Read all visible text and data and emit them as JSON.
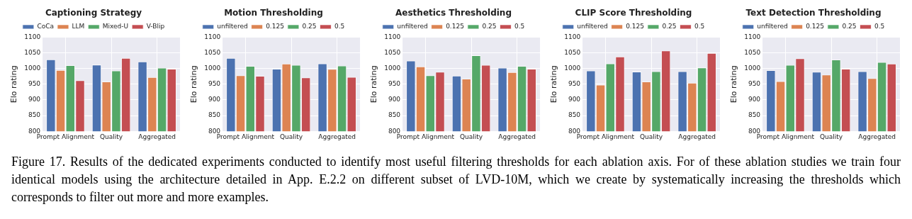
{
  "chart_data": [
    {
      "type": "bar",
      "title": "Captioning Strategy",
      "ylabel": "Elo rating",
      "categories": [
        "Prompt Alignment",
        "Quality",
        "Aggregated"
      ],
      "ylim": [
        800,
        1100
      ],
      "yticks": [
        800,
        850,
        900,
        950,
        1000,
        1050,
        1100
      ],
      "grid": true,
      "legend": "top",
      "annotations": [
        "Figure 17. Results of the dedicated experiments conducted to identify most useful filtering thresholds for each ablation axis. For of these ablation studies we train four identical models using the architecture detailed in App. E.2.2 on different subset of LVD-10M, which we create by systematically increasing the thresholds which corresponds to filter out more and more examples."
      ],
      "series": [
        {
          "name": "CoCa",
          "color": "#4c72b0",
          "values": [
            1029,
            1012,
            1022
          ]
        },
        {
          "name": "LLM",
          "color": "#dd8452",
          "values": [
            995,
            958,
            972
          ]
        },
        {
          "name": "Mixed-U",
          "color": "#55a868",
          "values": [
            1010,
            993,
            1002
          ]
        },
        {
          "name": "V-Blip",
          "color": "#c44e52",
          "values": [
            962,
            1033,
            999
          ]
        }
      ]
    },
    {
      "type": "bar",
      "title": "Motion Thresholding",
      "ylabel": "Elo rating",
      "categories": [
        "Prompt Alignment",
        "Quality",
        "Aggregated"
      ],
      "ylim": [
        800,
        1100
      ],
      "yticks": [
        800,
        850,
        900,
        950,
        1000,
        1050,
        1100
      ],
      "grid": true,
      "legend": "top",
      "series": [
        {
          "name": "unfiltered",
          "color": "#4c72b0",
          "values": [
            1033,
            999,
            1016
          ]
        },
        {
          "name": "0.125",
          "color": "#dd8452",
          "values": [
            978,
            1015,
            998
          ]
        },
        {
          "name": "0.25",
          "color": "#55a868",
          "values": [
            1008,
            1011,
            1009
          ]
        },
        {
          "name": "0.5",
          "color": "#c44e52",
          "values": [
            976,
            971,
            973
          ]
        }
      ]
    },
    {
      "type": "bar",
      "title": "Aesthetics Thresholding",
      "ylabel": "Elo rating",
      "categories": [
        "Prompt Alignment",
        "Quality",
        "Aggregated"
      ],
      "ylim": [
        800,
        1100
      ],
      "yticks": [
        800,
        850,
        900,
        950,
        1000,
        1050,
        1100
      ],
      "grid": true,
      "legend": "top",
      "series": [
        {
          "name": "unfiltered",
          "color": "#4c72b0",
          "values": [
            1025,
            977,
            1002
          ]
        },
        {
          "name": "0.125",
          "color": "#dd8452",
          "values": [
            1006,
            967,
            988
          ]
        },
        {
          "name": "0.25",
          "color": "#55a868",
          "values": [
            978,
            1042,
            1008
          ]
        },
        {
          "name": "0.5",
          "color": "#c44e52",
          "values": [
            989,
            1011,
            999
          ]
        }
      ]
    },
    {
      "type": "bar",
      "title": "CLIP Score Thresholding",
      "ylabel": "Elo rating",
      "categories": [
        "Prompt Alignment",
        "Quality",
        "Aggregated"
      ],
      "ylim": [
        800,
        1100
      ],
      "yticks": [
        800,
        850,
        900,
        950,
        1000,
        1050,
        1100
      ],
      "grid": true,
      "legend": "top",
      "series": [
        {
          "name": "unfiltered",
          "color": "#4c72b0",
          "values": [
            993,
            990,
            991
          ]
        },
        {
          "name": "0.125",
          "color": "#dd8452",
          "values": [
            948,
            958,
            954
          ]
        },
        {
          "name": "0.25",
          "color": "#55a868",
          "values": [
            1016,
            991,
            1003
          ]
        },
        {
          "name": "0.5",
          "color": "#c44e52",
          "values": [
            1038,
            1057,
            1049
          ]
        }
      ]
    },
    {
      "type": "bar",
      "title": "Text Detection Thresholding",
      "ylabel": "Elo rating",
      "categories": [
        "Prompt Alignment",
        "Quality",
        "Aggregated"
      ],
      "ylim": [
        800,
        1100
      ],
      "yticks": [
        800,
        850,
        900,
        950,
        1000,
        1050,
        1100
      ],
      "grid": true,
      "legend": "top",
      "series": [
        {
          "name": "unfiltered",
          "color": "#4c72b0",
          "values": [
            994,
            989,
            991
          ]
        },
        {
          "name": "0.125",
          "color": "#dd8452",
          "values": [
            959,
            980,
            969
          ]
        },
        {
          "name": "0.25",
          "color": "#55a868",
          "values": [
            1011,
            1028,
            1020
          ]
        },
        {
          "name": "0.5",
          "color": "#c44e52",
          "values": [
            1032,
            999,
            1015
          ]
        }
      ]
    }
  ]
}
